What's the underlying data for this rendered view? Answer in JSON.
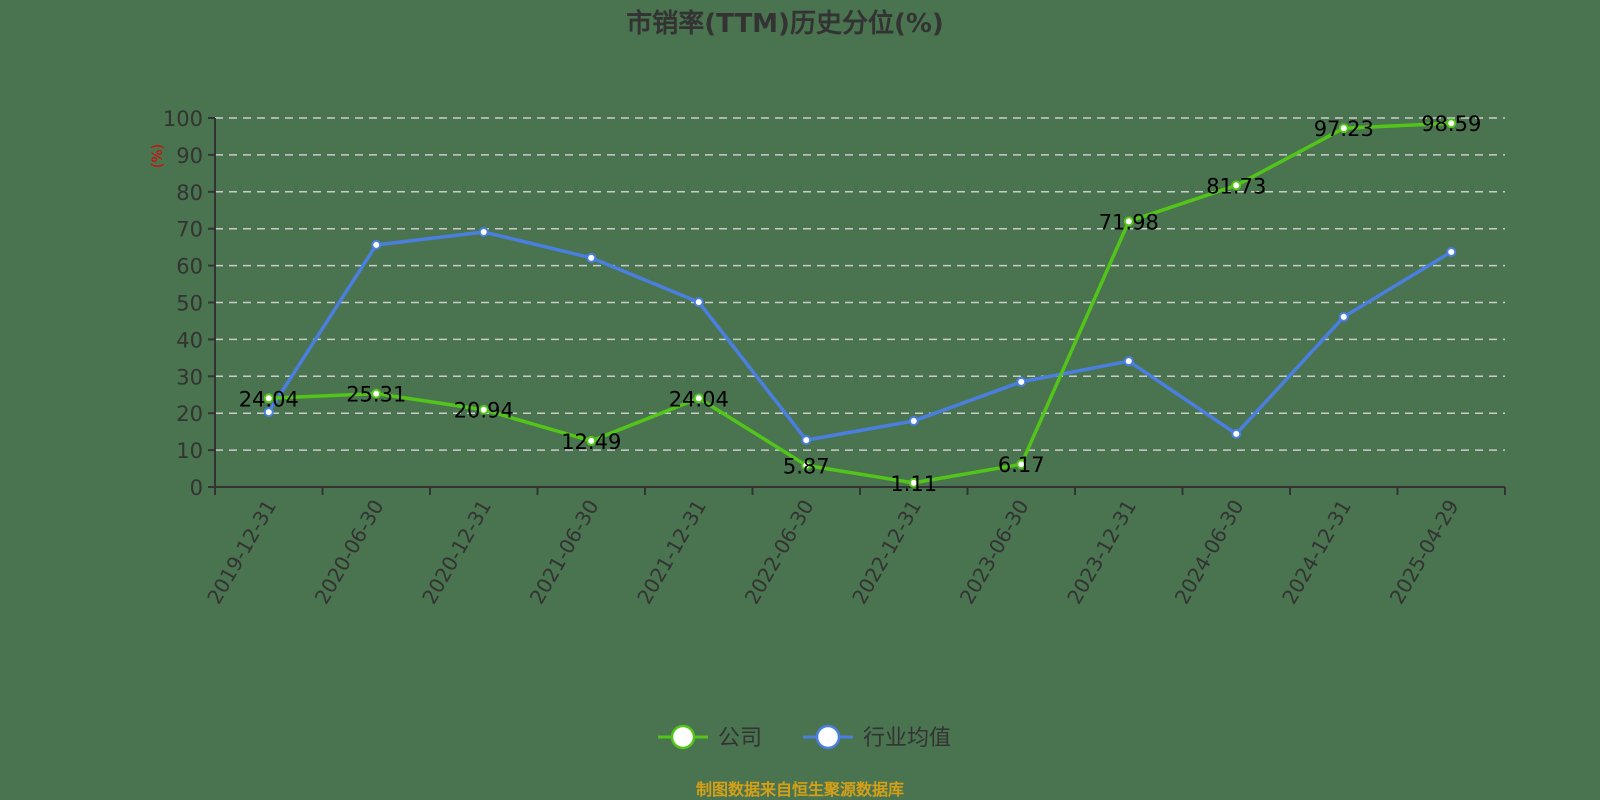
{
  "chart_data": {
    "type": "line",
    "title": "市销率(TTM)历史分位(%)",
    "xlabel": "",
    "ylabel": "(%)",
    "ylim": [
      0,
      100
    ],
    "yticks": [
      0,
      10,
      20,
      30,
      40,
      50,
      60,
      70,
      80,
      90,
      100
    ],
    "grid": true,
    "legend_position": "bottom",
    "categories": [
      "2019-12-31",
      "2020-06-30",
      "2020-12-31",
      "2021-06-30",
      "2021-12-31",
      "2022-06-30",
      "2022-12-31",
      "2023-06-30",
      "2023-12-31",
      "2024-06-30",
      "2024-12-31",
      "2025-04-29"
    ],
    "series": [
      {
        "name": "公司",
        "color": "#52c41a",
        "labels_shown": true,
        "values": [
          24.04,
          25.31,
          20.94,
          12.49,
          24.04,
          5.87,
          1.11,
          6.17,
          71.98,
          81.73,
          97.23,
          98.59
        ]
      },
      {
        "name": "行业均值",
        "color": "#4a7fe0",
        "labels_shown": false,
        "values": [
          20.3,
          65.6,
          69.1,
          62.1,
          50.1,
          12.7,
          17.9,
          28.5,
          34.1,
          14.4,
          46.1,
          63.7
        ]
      }
    ],
    "source": "制图数据来自恒生聚源数据库"
  },
  "colors": {
    "background": "#4a7350",
    "axis": "#333333",
    "grid": "#cccccc",
    "source_text": "#d4a017",
    "unit_text": "#e00000"
  }
}
